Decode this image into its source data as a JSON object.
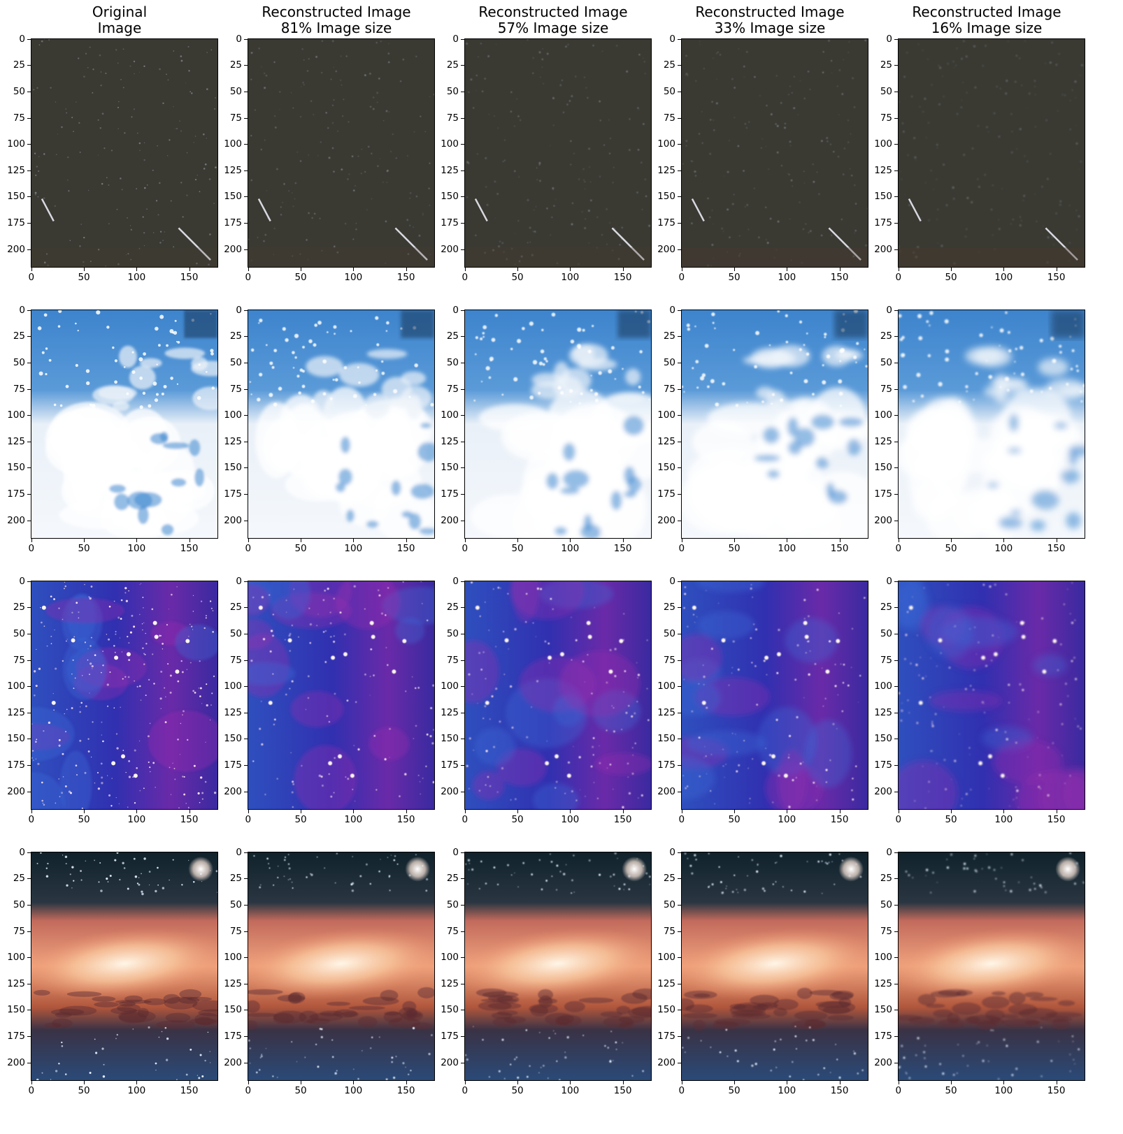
{
  "column_titles": [
    {
      "line1": "Original",
      "line2": "Image"
    },
    {
      "line1": "Reconstructed Image",
      "line2": "81% Image size"
    },
    {
      "line1": "Reconstructed Image",
      "line2": "57% Image size"
    },
    {
      "line1": "Reconstructed Image",
      "line2": "33% Image size"
    },
    {
      "line1": "Reconstructed Image",
      "line2": "16% Image size"
    }
  ],
  "axes": {
    "y_ticks": [
      "0",
      "25",
      "50",
      "75",
      "100",
      "125",
      "150",
      "175",
      "200"
    ],
    "x_ticks": [
      "0",
      "50",
      "100",
      "150"
    ]
  },
  "rows": [
    {
      "scene": "dark-night-sky-meteors",
      "colors": {
        "base": "#3b3b34",
        "accent": "#d8d8e0"
      }
    },
    {
      "scene": "blue-white-clouds",
      "colors": {
        "base": "#3d87cf",
        "accent": "#f4f7fb"
      }
    },
    {
      "scene": "purple-blue-starfield",
      "colors": {
        "base": "#3233b8",
        "accent": "#8a2aa6"
      }
    },
    {
      "scene": "spiral-galaxy",
      "colors": {
        "base": "#274a70",
        "accent": "#f2a27e"
      }
    }
  ]
}
